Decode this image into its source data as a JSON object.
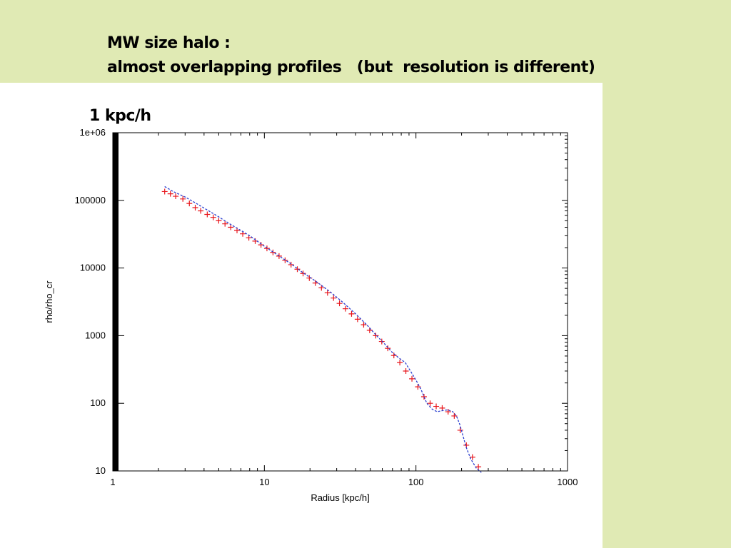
{
  "slide": {
    "title_line1": "MW size halo :",
    "title_line2": "almost overlapping profiles   (but  resolution is different)",
    "resolution_label": "1 kpc/h"
  },
  "chart_data": {
    "type": "scatter",
    "title": "",
    "xlabel": "Radius [kpc/h]",
    "ylabel": "rho/rho_cr",
    "xscale": "log",
    "yscale": "log",
    "xlim": [
      1,
      1000
    ],
    "ylim": [
      10,
      1000000
    ],
    "x_ticks": [
      {
        "value": 1,
        "label": "1"
      },
      {
        "value": 10,
        "label": "10"
      },
      {
        "value": 100,
        "label": "100"
      },
      {
        "value": 1000,
        "label": "1000"
      }
    ],
    "y_ticks": [
      {
        "value": 10,
        "label": "10"
      },
      {
        "value": 100,
        "label": "100"
      },
      {
        "value": 1000,
        "label": "1000"
      },
      {
        "value": 10000,
        "label": "10000"
      },
      {
        "value": 100000,
        "label": "100000"
      },
      {
        "value": 1000000,
        "label": "1e+06"
      }
    ],
    "grid": false,
    "legend": "none",
    "series": [
      {
        "style": "points-plus",
        "color": "#e8151b",
        "x": [
          2.2,
          2.4,
          2.6,
          2.9,
          3.2,
          3.5,
          3.8,
          4.2,
          4.6,
          5.0,
          5.5,
          6.0,
          6.6,
          7.2,
          7.9,
          8.7,
          9.5,
          10.4,
          11.4,
          12.5,
          13.7,
          15.0,
          16.5,
          18.0,
          19.8,
          21.7,
          23.8,
          26.1,
          28.6,
          31.3,
          34.3,
          37.6,
          41.2,
          45.2,
          49.5,
          54.3,
          59.5,
          65.2,
          71.5,
          78.3,
          85.8,
          94.1,
          103,
          113,
          124,
          136,
          149,
          163,
          179,
          196,
          215,
          236,
          258
        ],
        "y": [
          135000,
          125000,
          115000,
          105000,
          90000,
          78000,
          70000,
          62000,
          56000,
          50000,
          45000,
          40000,
          36000,
          32000,
          28000,
          25000,
          22000,
          19500,
          17000,
          15000,
          13000,
          11200,
          9600,
          8300,
          7100,
          6000,
          5100,
          4300,
          3600,
          3000,
          2500,
          2100,
          1750,
          1450,
          1200,
          1000,
          820,
          650,
          510,
          400,
          300,
          230,
          175,
          125,
          100,
          90,
          85,
          75,
          65,
          40,
          24,
          16,
          11.5
        ]
      },
      {
        "style": "dashed-line",
        "color": "#2a3fd0",
        "x": [
          2.2,
          2.5,
          3.0,
          3.5,
          4.0,
          5.0,
          6.0,
          7.0,
          8.0,
          10,
          12,
          15,
          18,
          22,
          27,
          33,
          40,
          48,
          55,
          62,
          70,
          78,
          85,
          92,
          100,
          108,
          118,
          128,
          138,
          150,
          162,
          175,
          185,
          195,
          205,
          215,
          230,
          250,
          270
        ],
        "y": [
          160000,
          135000,
          112000,
          92000,
          77000,
          57000,
          44000,
          36000,
          30000,
          21000,
          16000,
          11500,
          8500,
          6300,
          4500,
          3100,
          2100,
          1400,
          1000,
          760,
          560,
          460,
          400,
          300,
          220,
          160,
          100,
          82,
          75,
          78,
          80,
          75,
          65,
          48,
          32,
          22,
          15,
          11,
          9.5
        ]
      }
    ]
  }
}
